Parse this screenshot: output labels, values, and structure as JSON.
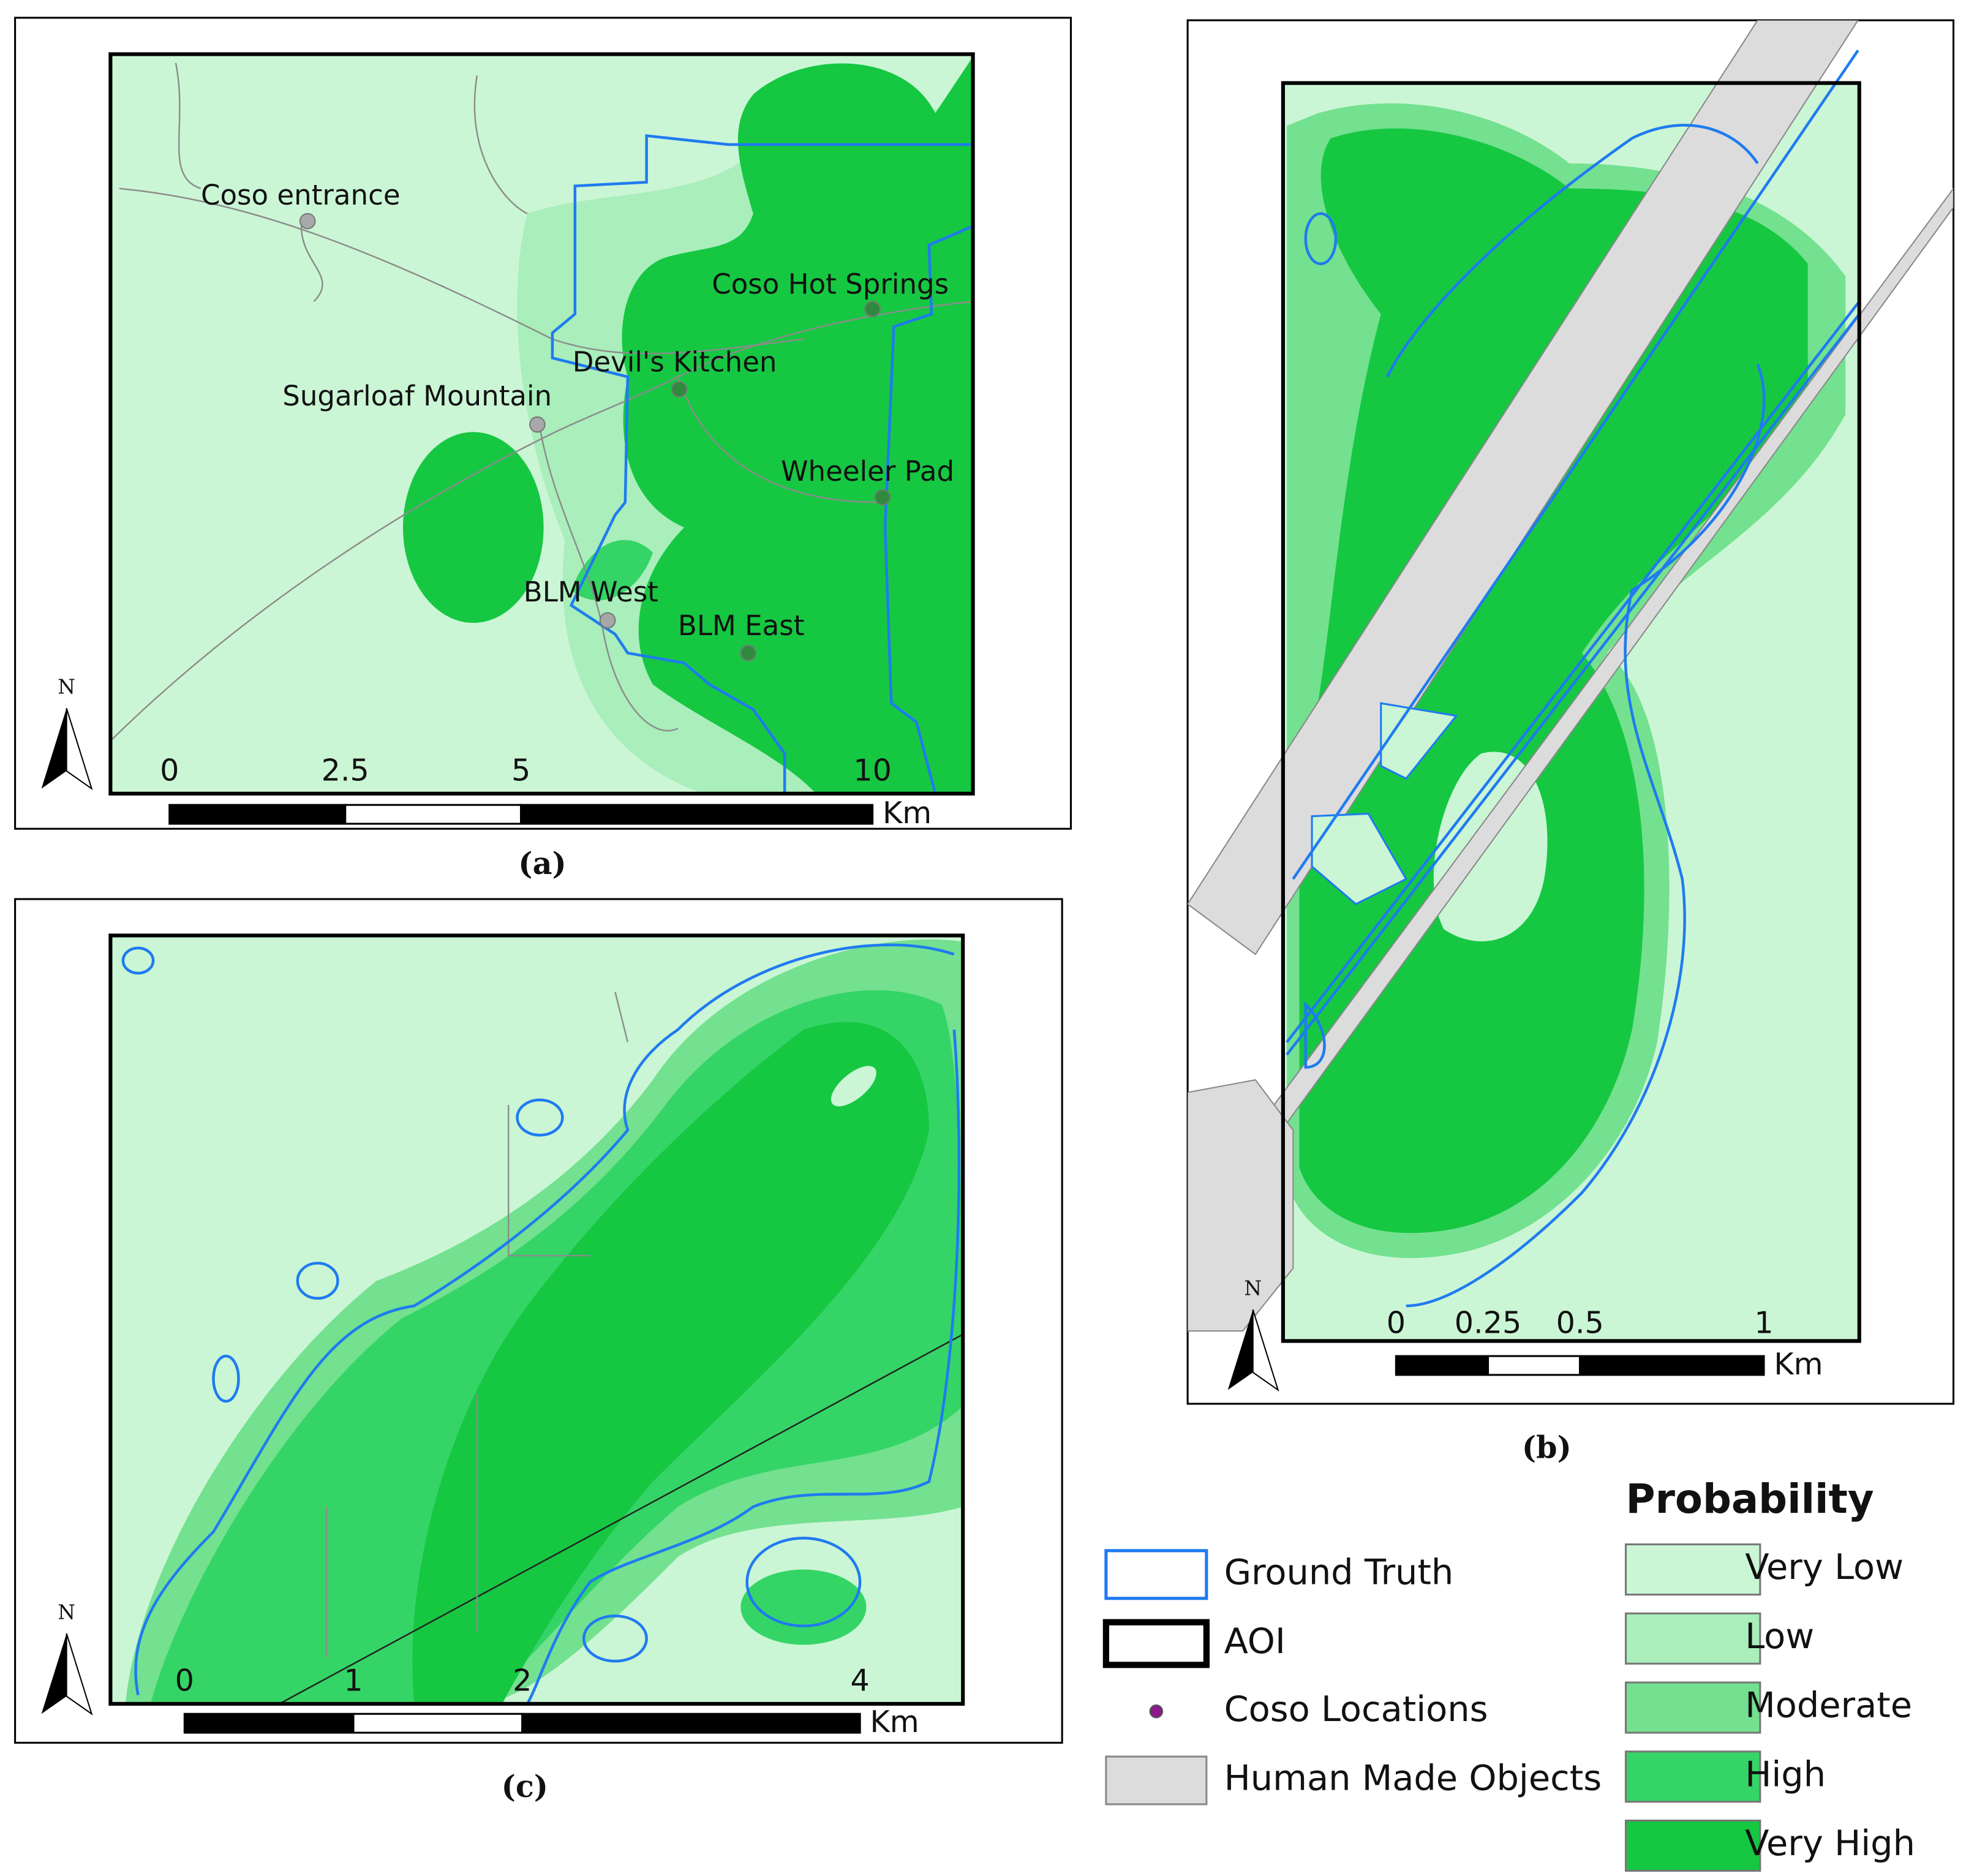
{
  "panels": [
    {
      "caption": "(a)",
      "north": "N",
      "scale": {
        "ticks": [
          0,
          2.5,
          5,
          10
        ],
        "unit": "Km"
      },
      "places": [
        {
          "name": "Coso entrance",
          "color": "#a8a8a8"
        },
        {
          "name": "Coso Hot Springs",
          "color": "#2f8a3e"
        },
        {
          "name": "Devil's Kitchen",
          "color": "#2f8a3e"
        },
        {
          "name": "Sugarloaf Mountain",
          "color": "#a8a8a8"
        },
        {
          "name": "Wheeler Pad",
          "color": "#2f8a3e"
        },
        {
          "name": "BLM West",
          "color": "#a8a8a8"
        },
        {
          "name": "BLM East",
          "color": "#2f8a3e"
        }
      ]
    },
    {
      "caption": "(b)",
      "north": "N",
      "scale": {
        "ticks": [
          0,
          0.25,
          0.5,
          1
        ],
        "unit": "Km"
      },
      "places": []
    },
    {
      "caption": "(c)",
      "north": "N",
      "scale": {
        "ticks": [
          0,
          1,
          2,
          4
        ],
        "unit": "Km"
      },
      "places": []
    }
  ],
  "legend": {
    "symbols": [
      {
        "label": "Ground Truth",
        "color": "#1f7bf0"
      },
      {
        "label": "AOI",
        "color": "#000000"
      },
      {
        "label": "Coso Locations",
        "color": "#8b1a8b"
      },
      {
        "label": "Human Made Objects",
        "color": "#dcdcdc"
      }
    ],
    "probability": {
      "title": "Probability",
      "classes": [
        {
          "label": "Very Low",
          "color": "#cbf6d5"
        },
        {
          "label": "Low",
          "color": "#a9eebb"
        },
        {
          "label": "Moderate",
          "color": "#73e18f"
        },
        {
          "label": "High",
          "color": "#34d566"
        },
        {
          "label": "Very High",
          "color": "#16c742"
        }
      ]
    }
  }
}
